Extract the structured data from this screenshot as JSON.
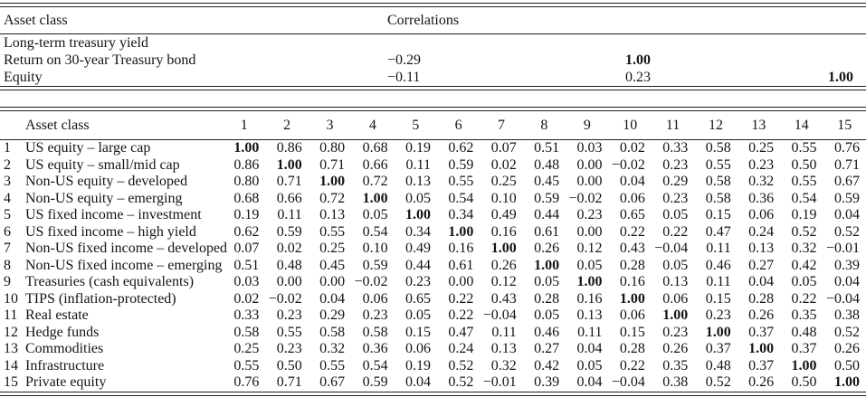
{
  "table1": {
    "headers": {
      "asset_class": "Asset class",
      "correlations": "Correlations"
    },
    "rows": [
      {
        "label": "Long-term treasury yield",
        "values": [
          "",
          "",
          ""
        ]
      },
      {
        "label": "Return on 30-year Treasury bond",
        "values": [
          "−0.29",
          "1.00",
          ""
        ]
      },
      {
        "label": "Equity",
        "values": [
          "−0.11",
          "0.23",
          "1.00"
        ]
      }
    ]
  },
  "table2": {
    "headers": {
      "asset_class": "Asset class",
      "columns": [
        "1",
        "2",
        "3",
        "4",
        "5",
        "6",
        "7",
        "8",
        "9",
        "10",
        "11",
        "12",
        "13",
        "14",
        "15"
      ]
    },
    "rows": [
      {
        "num": "1",
        "label": "US equity – large cap",
        "values": [
          "1.00",
          "0.86",
          "0.80",
          "0.68",
          "0.19",
          "0.62",
          "0.07",
          "0.51",
          "0.03",
          "0.02",
          "0.33",
          "0.58",
          "0.25",
          "0.55",
          "0.76"
        ]
      },
      {
        "num": "2",
        "label": "US equity – small/mid cap",
        "values": [
          "0.86",
          "1.00",
          "0.71",
          "0.66",
          "0.11",
          "0.59",
          "0.02",
          "0.48",
          "0.00",
          "−0.02",
          "0.23",
          "0.55",
          "0.23",
          "0.50",
          "0.71"
        ]
      },
      {
        "num": "3",
        "label": "Non-US equity – developed",
        "values": [
          "0.80",
          "0.71",
          "1.00",
          "0.72",
          "0.13",
          "0.55",
          "0.25",
          "0.45",
          "0.00",
          "0.04",
          "0.29",
          "0.58",
          "0.32",
          "0.55",
          "0.67"
        ]
      },
      {
        "num": "4",
        "label": "Non-US equity – emerging",
        "values": [
          "0.68",
          "0.66",
          "0.72",
          "1.00",
          "0.05",
          "0.54",
          "0.10",
          "0.59",
          "−0.02",
          "0.06",
          "0.23",
          "0.58",
          "0.36",
          "0.54",
          "0.59"
        ]
      },
      {
        "num": "5",
        "label": "US fixed income – investment",
        "values": [
          "0.19",
          "0.11",
          "0.13",
          "0.05",
          "1.00",
          "0.34",
          "0.49",
          "0.44",
          "0.23",
          "0.65",
          "0.05",
          "0.15",
          "0.06",
          "0.19",
          "0.04"
        ]
      },
      {
        "num": "6",
        "label": "US fixed income – high yield",
        "values": [
          "0.62",
          "0.59",
          "0.55",
          "0.54",
          "0.34",
          "1.00",
          "0.16",
          "0.61",
          "0.00",
          "0.22",
          "0.22",
          "0.47",
          "0.24",
          "0.52",
          "0.52"
        ]
      },
      {
        "num": "7",
        "label": "Non-US fixed income – developed",
        "values": [
          "0.07",
          "0.02",
          "0.25",
          "0.10",
          "0.49",
          "0.16",
          "1.00",
          "0.26",
          "0.12",
          "0.43",
          "−0.04",
          "0.11",
          "0.13",
          "0.32",
          "−0.01"
        ]
      },
      {
        "num": "8",
        "label": "Non-US fixed income – emerging",
        "values": [
          "0.51",
          "0.48",
          "0.45",
          "0.59",
          "0.44",
          "0.61",
          "0.26",
          "1.00",
          "0.05",
          "0.28",
          "0.05",
          "0.46",
          "0.27",
          "0.42",
          "0.39"
        ]
      },
      {
        "num": "9",
        "label": "Treasuries (cash equivalents)",
        "values": [
          "0.03",
          "0.00",
          "0.00",
          "−0.02",
          "0.23",
          "0.00",
          "0.12",
          "0.05",
          "1.00",
          "0.16",
          "0.13",
          "0.11",
          "0.04",
          "0.05",
          "0.04"
        ]
      },
      {
        "num": "10",
        "label": "TIPS (inflation-protected)",
        "values": [
          "0.02",
          "−0.02",
          "0.04",
          "0.06",
          "0.65",
          "0.22",
          "0.43",
          "0.28",
          "0.16",
          "1.00",
          "0.06",
          "0.15",
          "0.28",
          "0.22",
          "−0.04"
        ]
      },
      {
        "num": "11",
        "label": "Real estate",
        "values": [
          "0.33",
          "0.23",
          "0.29",
          "0.23",
          "0.05",
          "0.22",
          "−0.04",
          "0.05",
          "0.13",
          "0.06",
          "1.00",
          "0.23",
          "0.26",
          "0.35",
          "0.38"
        ]
      },
      {
        "num": "12",
        "label": "Hedge funds",
        "values": [
          "0.58",
          "0.55",
          "0.58",
          "0.58",
          "0.15",
          "0.47",
          "0.11",
          "0.46",
          "0.11",
          "0.15",
          "0.23",
          "1.00",
          "0.37",
          "0.48",
          "0.52"
        ]
      },
      {
        "num": "13",
        "label": "Commodities",
        "values": [
          "0.25",
          "0.23",
          "0.32",
          "0.36",
          "0.06",
          "0.24",
          "0.13",
          "0.27",
          "0.04",
          "0.28",
          "0.26",
          "0.37",
          "1.00",
          "0.37",
          "0.26"
        ]
      },
      {
        "num": "14",
        "label": "Infrastructure",
        "values": [
          "0.55",
          "0.50",
          "0.55",
          "0.54",
          "0.19",
          "0.52",
          "0.32",
          "0.42",
          "0.05",
          "0.22",
          "0.35",
          "0.48",
          "0.37",
          "1.00",
          "0.50"
        ]
      },
      {
        "num": "15",
        "label": "Private equity",
        "values": [
          "0.76",
          "0.71",
          "0.67",
          "0.59",
          "0.04",
          "0.52",
          "−0.01",
          "0.39",
          "0.04",
          "−0.04",
          "0.38",
          "0.52",
          "0.26",
          "0.50",
          "1.00"
        ]
      }
    ]
  }
}
